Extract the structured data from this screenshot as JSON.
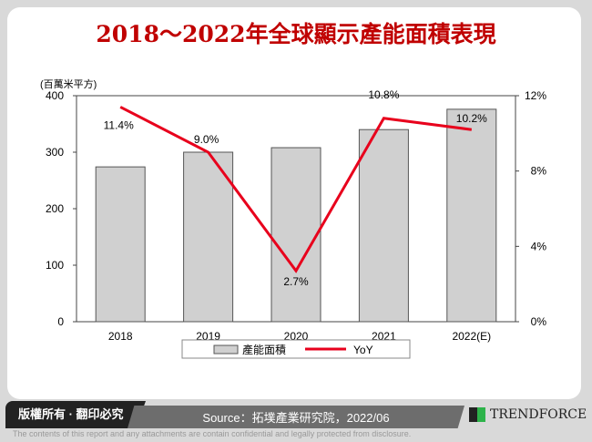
{
  "chart_data": {
    "type": "bar+line",
    "title": "2018～2022年全球顯示產能面積表現",
    "ylabel": "(百萬米平方)",
    "categories": [
      "2018",
      "2019",
      "2020",
      "2021",
      "2022(E)"
    ],
    "ylim": [
      0,
      400
    ],
    "yticks": [
      "0",
      "100",
      "200",
      "300",
      "400"
    ],
    "y2lim": [
      0,
      12
    ],
    "y2ticks": [
      "0%",
      "4%",
      "8%",
      "12%"
    ],
    "series": [
      {
        "name": "產能面積",
        "type": "bar",
        "values": [
          274,
          300,
          308,
          340,
          376
        ],
        "color": "#d0d0d0"
      },
      {
        "name": "YoY",
        "type": "line",
        "axis": "right",
        "values": [
          11.4,
          9.0,
          2.7,
          10.8,
          10.2
        ],
        "labels": [
          "11.4%",
          "9.0%",
          "2.7%",
          "10.8%",
          "10.2%"
        ],
        "color": "#e8001c"
      }
    ],
    "legend": "bottom",
    "grid": false
  },
  "footer": {
    "copyright": "版權所有 · 翻印必究",
    "source": "Source：拓墣產業研究院，2022/06",
    "logo": "TRENDFORCE",
    "disclaimer": "The contents of this report and any attachments are contain confidential and legally protected from disclosure."
  }
}
